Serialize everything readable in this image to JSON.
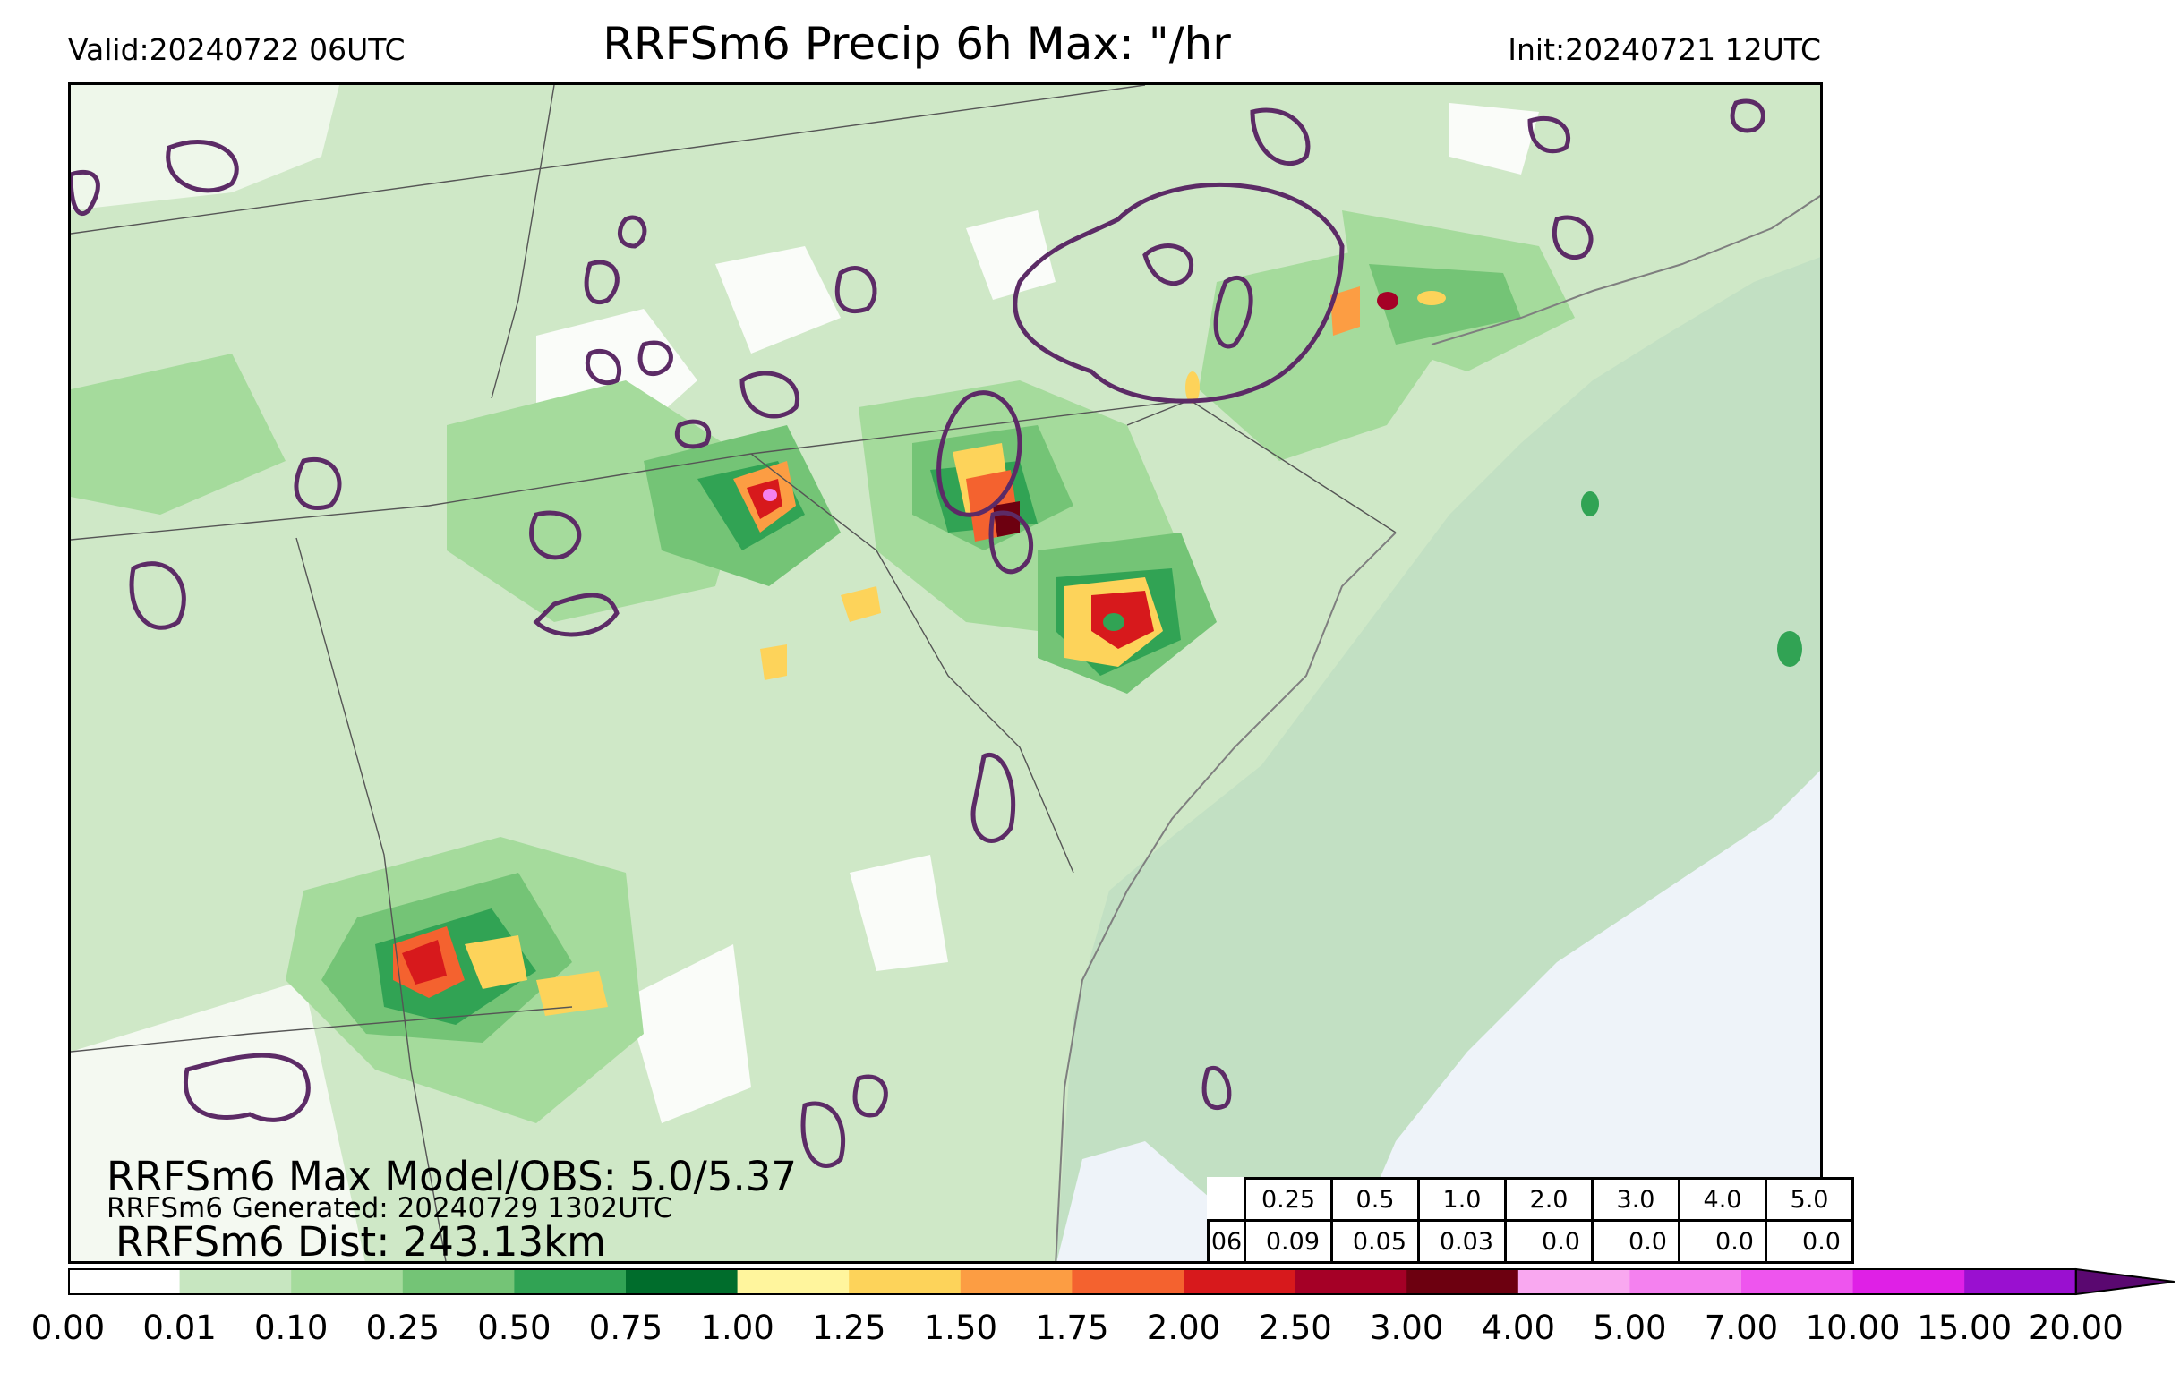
{
  "header": {
    "valid": "Valid:20240722 06UTC",
    "title": "RRFSm6 Precip 6h Max: \"/hr",
    "init": "Init:20240721 12UTC"
  },
  "overlay": {
    "line1": "RRFSm6 Max Model/OBS: 5.0/5.37",
    "line2": "RRFSm6 Generated: 20240729 1302UTC",
    "line3": "RRFSm6 Dist: 243.13km"
  },
  "stats_table": {
    "thresholds": [
      "0.25",
      "0.5",
      "1.0",
      "2.0",
      "3.0",
      "4.0",
      "5.0"
    ],
    "row_label": "06",
    "values": [
      "0.09",
      "0.05",
      "0.03",
      "0.0",
      "0.0",
      "0.0",
      "0.0"
    ]
  },
  "colorbar": {
    "labels": [
      "0.00",
      "0.01",
      "0.10",
      "0.25",
      "0.50",
      "0.75",
      "1.00",
      "1.25",
      "1.50",
      "1.75",
      "2.00",
      "2.50",
      "3.00",
      "4.00",
      "5.00",
      "7.00",
      "10.00",
      "15.00",
      "20.00"
    ],
    "colors": [
      "#ffffff",
      "#c7e6c0",
      "#a5db9c",
      "#74c476",
      "#31a354",
      "#006d2c",
      "#fff59d",
      "#fdd35a",
      "#fc9d43",
      "#f4622f",
      "#d7191c",
      "#a50026",
      "#6d0010",
      "#f9a8f0",
      "#f481ef",
      "#ee55ee",
      "#df20e6",
      "#9a10d0"
    ],
    "extend_color": "#5a0870"
  },
  "map": {
    "background_color": "#cfe8c7",
    "ocean_color": "#c2e0c3",
    "obs_contour_color": "#5c2b66",
    "boundary_color": "#555555"
  }
}
